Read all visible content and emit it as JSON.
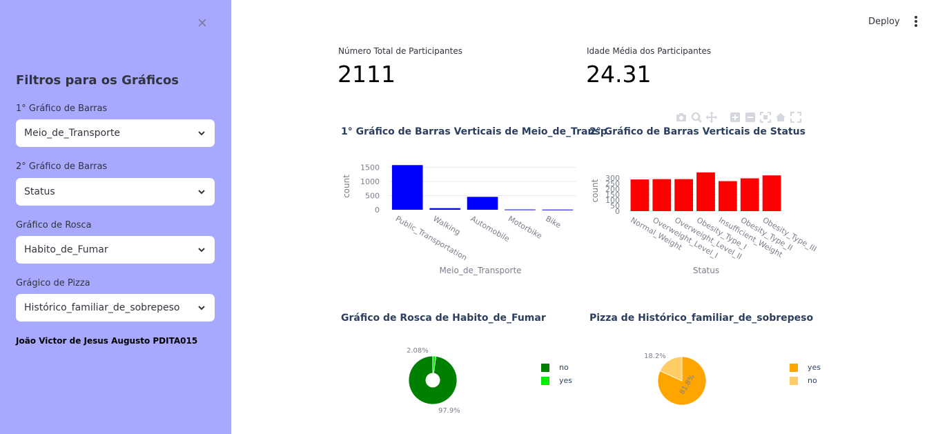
{
  "sidebar": {
    "title": "Filtros para os Gráficos",
    "filters": [
      {
        "label": "1° Gráfico de Barras",
        "value": "Meio_de_Transporte"
      },
      {
        "label": "2° Gráfico de Barras",
        "value": "Status"
      },
      {
        "label": "Gráfico de Rosca",
        "value": "Habito_de_Fumar"
      },
      {
        "label": "Grágico de Pizza",
        "value": "Histórico_familiar_de_sobrepeso"
      }
    ],
    "footer": "João Victor de Jesus Augusto PDITA015"
  },
  "header": {
    "deploy_label": "Deploy"
  },
  "metrics": [
    {
      "label": "Número Total de Participantes",
      "value": "2111"
    },
    {
      "label": "Idade Média dos Participantes",
      "value": "24.31"
    }
  ],
  "colors": {
    "sidebar_bg": "#a7a9ff",
    "bar1": "#0000ff",
    "bar2": "#ff0000",
    "donut_no": "#008000",
    "donut_yes": "#00ee00",
    "pie_yes": "#ffa500",
    "pie_no": "#ffcc66"
  },
  "chart_data": [
    {
      "type": "bar",
      "title": "1° Gráfico de Barras Verticais de Meio_de_Transp",
      "xlabel": "Meio_de_Transporte",
      "ylabel": "count",
      "categories": [
        "Public_Transportation",
        "Walking",
        "Automobile",
        "Motorbike",
        "Bike"
      ],
      "values": [
        1580,
        56,
        457,
        11,
        7
      ],
      "yticks": [
        0,
        500,
        1000,
        1500
      ],
      "ylim": [
        0,
        1660
      ],
      "color": "#0000ff"
    },
    {
      "type": "bar",
      "title": "2° Gráfico de Barras Verticais de Status",
      "xlabel": "Status",
      "ylabel": "count",
      "categories": [
        "Normal_Weight",
        "Overweight_Level_I",
        "Overweight_Level_II",
        "Obesity_Type_I",
        "Insufficient_Weight",
        "Obesity_Type_II",
        "Obesity_Type_III"
      ],
      "values": [
        287,
        290,
        290,
        351,
        272,
        297,
        324
      ],
      "yticks": [
        0,
        50,
        100,
        150,
        200,
        250,
        300
      ],
      "ylim": [
        0,
        369
      ],
      "color": "#ff0000"
    },
    {
      "type": "pie",
      "title": "Gráfico de Rosca de Habito_de_Fumar",
      "hole": 0.3,
      "slices": [
        {
          "label": "no",
          "value": 97.9,
          "text": "97.9%",
          "color": "#008000"
        },
        {
          "label": "yes",
          "value": 2.08,
          "text": "2.08%",
          "color": "#00ee00"
        }
      ]
    },
    {
      "type": "pie",
      "title": "Pizza de Histórico_familiar_de_sobrepeso",
      "hole": 0,
      "slices": [
        {
          "label": "yes",
          "value": 81.8,
          "text": "81.8%",
          "color": "#ffa500"
        },
        {
          "label": "no",
          "value": 18.2,
          "text": "18.2%",
          "color": "#ffcc66"
        }
      ]
    }
  ]
}
